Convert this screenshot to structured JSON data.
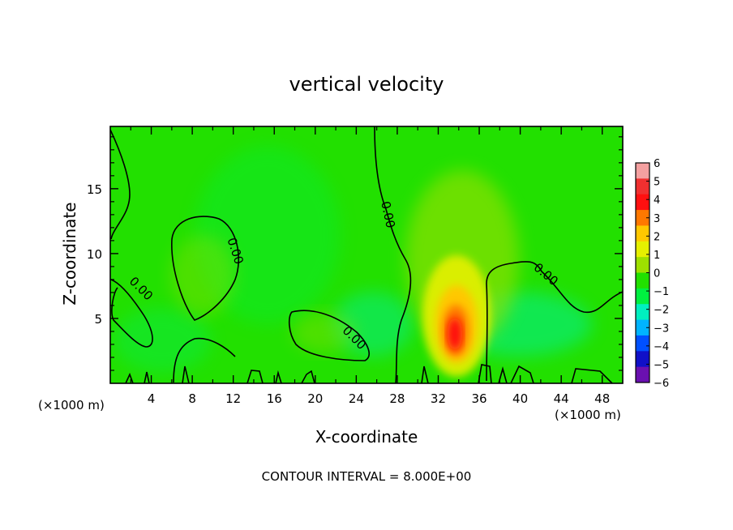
{
  "chart_data": {
    "type": "heatmap",
    "title": "vertical velocity",
    "xlabel": "X-coordinate",
    "ylabel": "Z-coordinate",
    "x_unit_left": "(×1000 m)",
    "x_unit_right": "(×1000 m)",
    "xlim": [
      0,
      50
    ],
    "ylim": [
      0,
      19.8
    ],
    "x_ticks": [
      4,
      8,
      12,
      16,
      20,
      24,
      28,
      32,
      36,
      40,
      44,
      48
    ],
    "y_ticks": [
      5,
      10,
      15
    ],
    "colorbar": {
      "min": -6,
      "max": 6,
      "tick_labels": [
        "6",
        "5",
        "4",
        "3",
        "2",
        "1",
        "0",
        "−1",
        "−2",
        "−3",
        "−4",
        "−5",
        "−6"
      ],
      "colors": [
        "#f4a0a0",
        "#f03030",
        "#ff1010",
        "#ff7800",
        "#ffc800",
        "#e6f000",
        "#9ee000",
        "#22e000",
        "#00f040",
        "#00f0c0",
        "#00b4ff",
        "#0050ff",
        "#1010c8",
        "#6a10b0"
      ]
    },
    "contour_label": "0.00",
    "contour_labels": [
      {
        "text": "0.00",
        "x": 3.0,
        "z": 7.3,
        "angle": 45
      },
      {
        "text": "0.00",
        "x": 12.2,
        "z": 10.2,
        "angle": 72
      },
      {
        "text": "0.00",
        "x": 23.8,
        "z": 3.5,
        "angle": 45
      },
      {
        "text": "0.00",
        "x": 27.1,
        "z": 13.0,
        "angle": 78
      },
      {
        "text": "0.00",
        "x": 42.5,
        "z": 8.4,
        "angle": 40
      }
    ],
    "field_features": [
      {
        "name": "updraft",
        "x": 33.6,
        "z": 3.8,
        "value": 4.5
      },
      {
        "name": "updraft-halo",
        "x": 33.5,
        "z": 9,
        "value": 1
      }
    ],
    "footer": "CONTOUR INTERVAL = 8.000E+00"
  }
}
